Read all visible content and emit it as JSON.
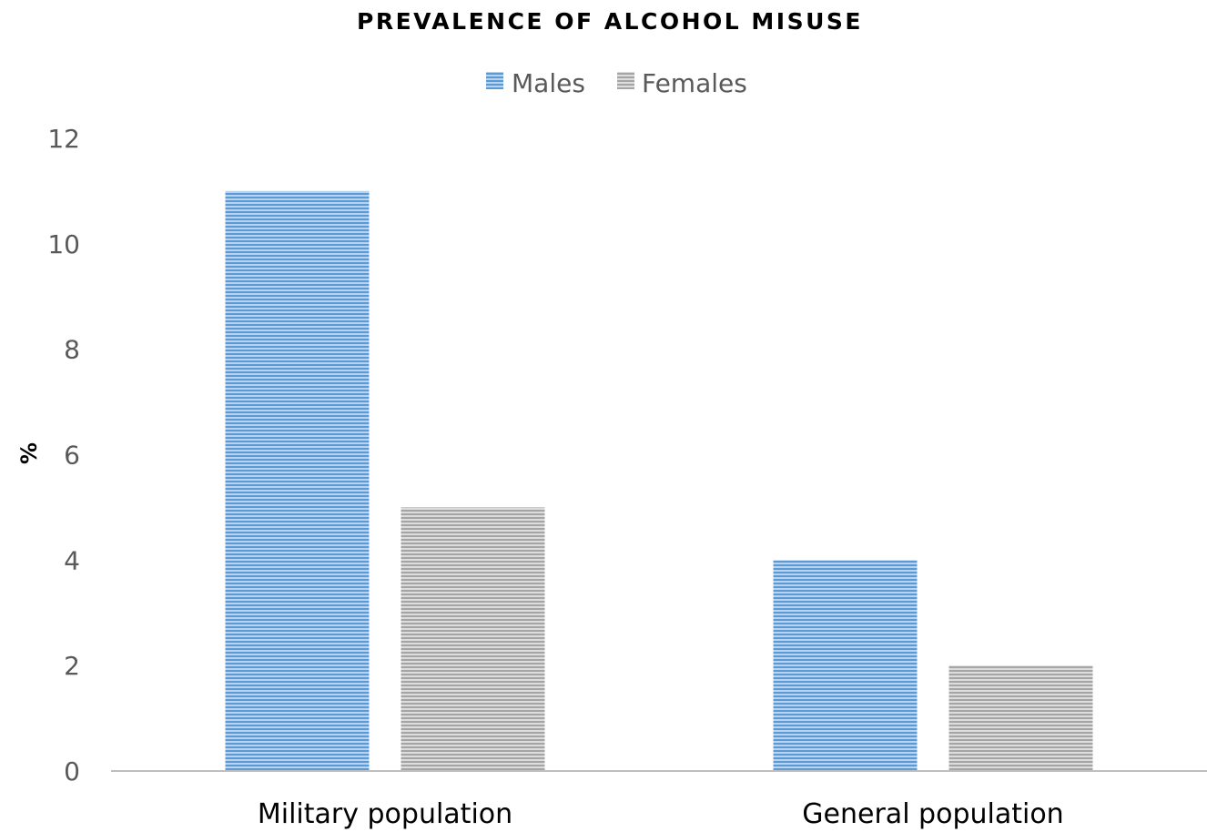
{
  "chart_data": {
    "type": "bar",
    "title": "PREVALENCE OF ALCOHOL MISUSE",
    "xlabel": "",
    "ylabel": "%",
    "categories": [
      "Military population",
      "General population"
    ],
    "series": [
      {
        "name": "Males",
        "values": [
          11,
          4
        ],
        "color": "#5B9BD5"
      },
      {
        "name": "Females",
        "values": [
          5,
          2
        ],
        "color": "#A5A5A5"
      }
    ],
    "ylim": [
      0,
      12
    ],
    "yticks": [
      "0",
      "2",
      "4",
      "6",
      "8",
      "10",
      "12"
    ],
    "grid": false,
    "legend": "top-center"
  }
}
